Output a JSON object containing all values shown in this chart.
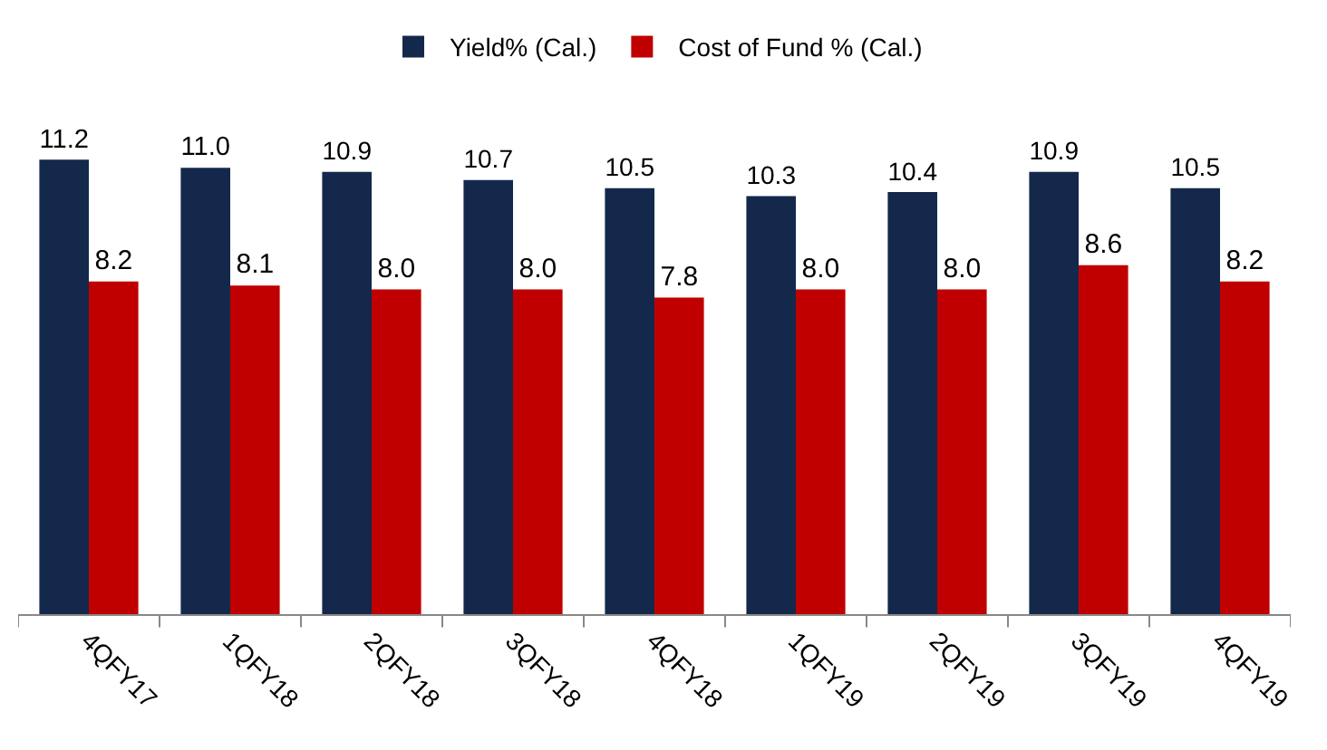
{
  "chart_data": {
    "type": "bar",
    "categories": [
      "4QFY17",
      "1QFY18",
      "2QFY18",
      "3QFY18",
      "4QFY18",
      "1QFY19",
      "2QFY19",
      "3QFY19",
      "4QFY19"
    ],
    "series": [
      {
        "name": "Yield% (Cal.)",
        "color": "#14284b",
        "values": [
          11.2,
          11.0,
          10.9,
          10.7,
          10.5,
          10.3,
          10.4,
          10.9,
          10.5
        ],
        "value_labels": [
          "11.2",
          "11.0",
          "10.9",
          "10.7",
          "10.5",
          "10.3",
          "10.4",
          "10.9",
          "10.5"
        ]
      },
      {
        "name": "Cost of Fund % (Cal.)",
        "color": "#c00000",
        "values": [
          8.2,
          8.1,
          8.0,
          8.0,
          7.8,
          8.0,
          8.0,
          8.6,
          8.2
        ],
        "value_labels": [
          "8.2",
          "8.1",
          "8.0",
          "8.0",
          "7.8",
          "8.0",
          "8.0",
          "8.6",
          "8.2"
        ]
      }
    ],
    "legend": "top",
    "tick_labels": "x"
  }
}
